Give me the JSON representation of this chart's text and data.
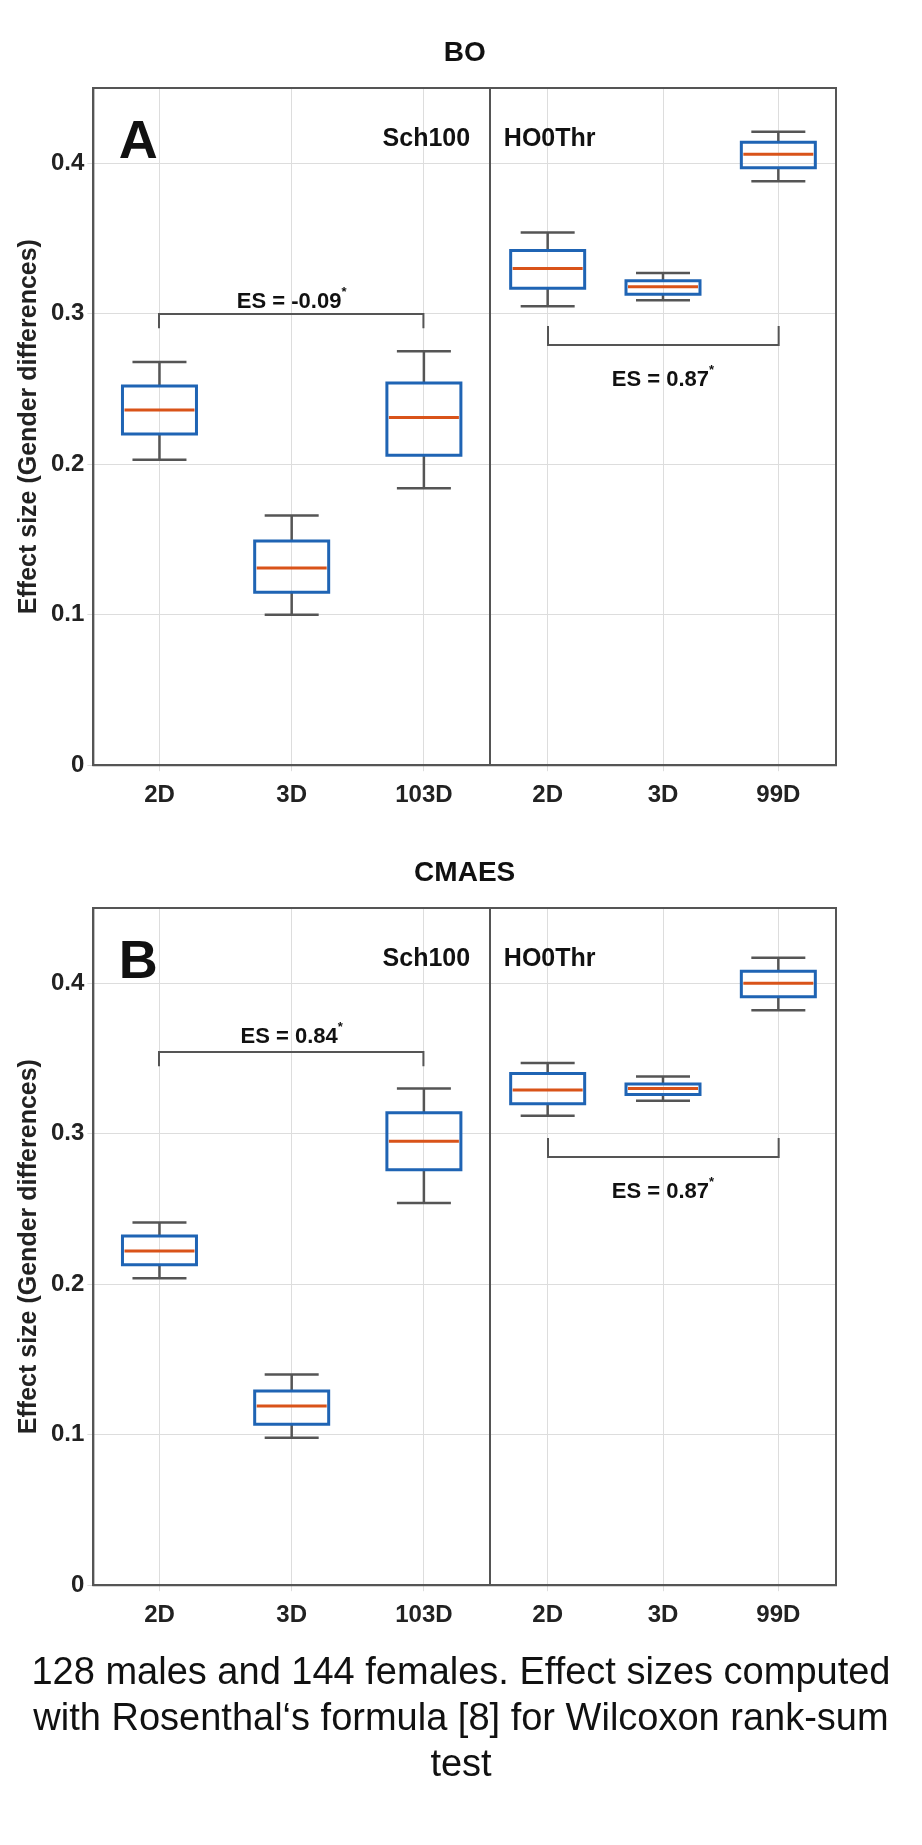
{
  "chart_data": [
    {
      "type": "box",
      "title": "BO",
      "ylabel": "Effect size (Gender differences)",
      "categories": [
        "2D",
        "3D",
        "103D"
      ],
      "ylim": [
        0,
        0.45
      ],
      "yticks": [
        0,
        0.1,
        0.2,
        0.3,
        0.4
      ],
      "grid": true,
      "legend": false,
      "series": [
        {
          "color": "#1f64b4",
          "boxes": [
            {
              "low": 0.203,
              "q1": 0.22,
              "median": 0.236,
              "q3": 0.252,
              "high": 0.268
            },
            {
              "low": 0.1,
              "q1": 0.115,
              "median": 0.131,
              "q3": 0.149,
              "high": 0.166
            },
            {
              "low": 0.184,
              "q1": 0.206,
              "median": 0.231,
              "q3": 0.254,
              "high": 0.275
            }
          ]
        }
      ],
      "annotations": [
        "A",
        "Sch100",
        "ES = -0.09$^{*}$"
      ]
    },
    {
      "type": "box",
      "categories": [
        "2D",
        "3D",
        "99D"
      ],
      "ylim": [
        0,
        0.45
      ],
      "yticks": [
        0,
        0.1,
        0.2,
        0.3,
        0.4
      ],
      "grid": true,
      "legend": false,
      "tick_labels": "x",
      "series": [
        {
          "color": "#1f64b4",
          "boxes": [
            {
              "low": 0.305,
              "q1": 0.317,
              "median": 0.33,
              "q3": 0.342,
              "high": 0.354
            },
            {
              "low": 0.309,
              "q1": 0.313,
              "median": 0.318,
              "q3": 0.322,
              "high": 0.327
            },
            {
              "low": 0.388,
              "q1": 0.397,
              "median": 0.406,
              "q3": 0.414,
              "high": 0.421
            }
          ]
        }
      ],
      "annotations": [
        "HO0Thr",
        "ES = 0.87$^{*}$"
      ]
    },
    {
      "type": "box",
      "title": "CMAES",
      "ylabel": "Effect size (Gender differences)",
      "categories": [
        "2D",
        "3D",
        "103D"
      ],
      "ylim": [
        0,
        0.45
      ],
      "yticks": [
        0,
        0.1,
        0.2,
        0.3,
        0.4
      ],
      "grid": true,
      "legend": false,
      "series": [
        {
          "color": "#1f64b4",
          "boxes": [
            {
              "low": 0.204,
              "q1": 0.213,
              "median": 0.222,
              "q3": 0.232,
              "high": 0.241
            },
            {
              "low": 0.098,
              "q1": 0.107,
              "median": 0.119,
              "q3": 0.129,
              "high": 0.14
            },
            {
              "low": 0.254,
              "q1": 0.276,
              "median": 0.295,
              "q3": 0.314,
              "high": 0.33
            }
          ]
        }
      ],
      "annotations": [
        "B",
        "Sch100",
        "ES = 0.84$^{*}$"
      ]
    },
    {
      "type": "box",
      "categories": [
        "2D",
        "3D",
        "99D"
      ],
      "ylim": [
        0,
        0.45
      ],
      "yticks": [
        0,
        0.1,
        0.2,
        0.3,
        0.4
      ],
      "grid": true,
      "legend": false,
      "tick_labels": "x",
      "series": [
        {
          "color": "#1f64b4",
          "boxes": [
            {
              "low": 0.312,
              "q1": 0.32,
              "median": 0.329,
              "q3": 0.34,
              "high": 0.347
            },
            {
              "low": 0.322,
              "q1": 0.326,
              "median": 0.33,
              "q3": 0.333,
              "high": 0.338
            },
            {
              "low": 0.382,
              "q1": 0.391,
              "median": 0.4,
              "q3": 0.408,
              "high": 0.417
            }
          ]
        }
      ],
      "annotations": [
        "ES = 0.87$^{*}$",
        "HO0Thr",
        "128 males and 144 females. Effect sizes computed with Rosenthal‘s formula [8] for Wilcoxon rank-sum test"
      ]
    }
  ]
}
